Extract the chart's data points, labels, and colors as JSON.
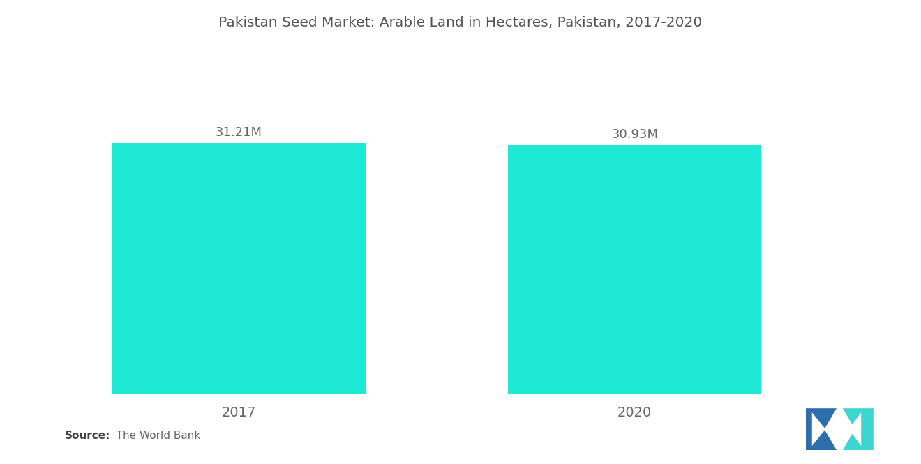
{
  "title": "Pakistan Seed Market: Arable Land in Hectares, Pakistan, 2017-2020",
  "categories": [
    "2017",
    "2020"
  ],
  "values": [
    31.21,
    30.93
  ],
  "labels": [
    "31.21M",
    "30.93M"
  ],
  "bar_color": "#1DE9D5",
  "background_color": "#ffffff",
  "title_fontsize": 14.5,
  "source_bold": "Source:",
  "source_rest": "   The World Bank",
  "ylim": [
    0,
    42
  ],
  "bar_width": 0.32,
  "x_positions": [
    0.22,
    0.72
  ],
  "xlim": [
    0.0,
    1.0
  ],
  "label_color": "#666666",
  "tick_color": "#666666",
  "logo_dark_blue": "#2C6FAC",
  "logo_teal": "#3DD6CF"
}
